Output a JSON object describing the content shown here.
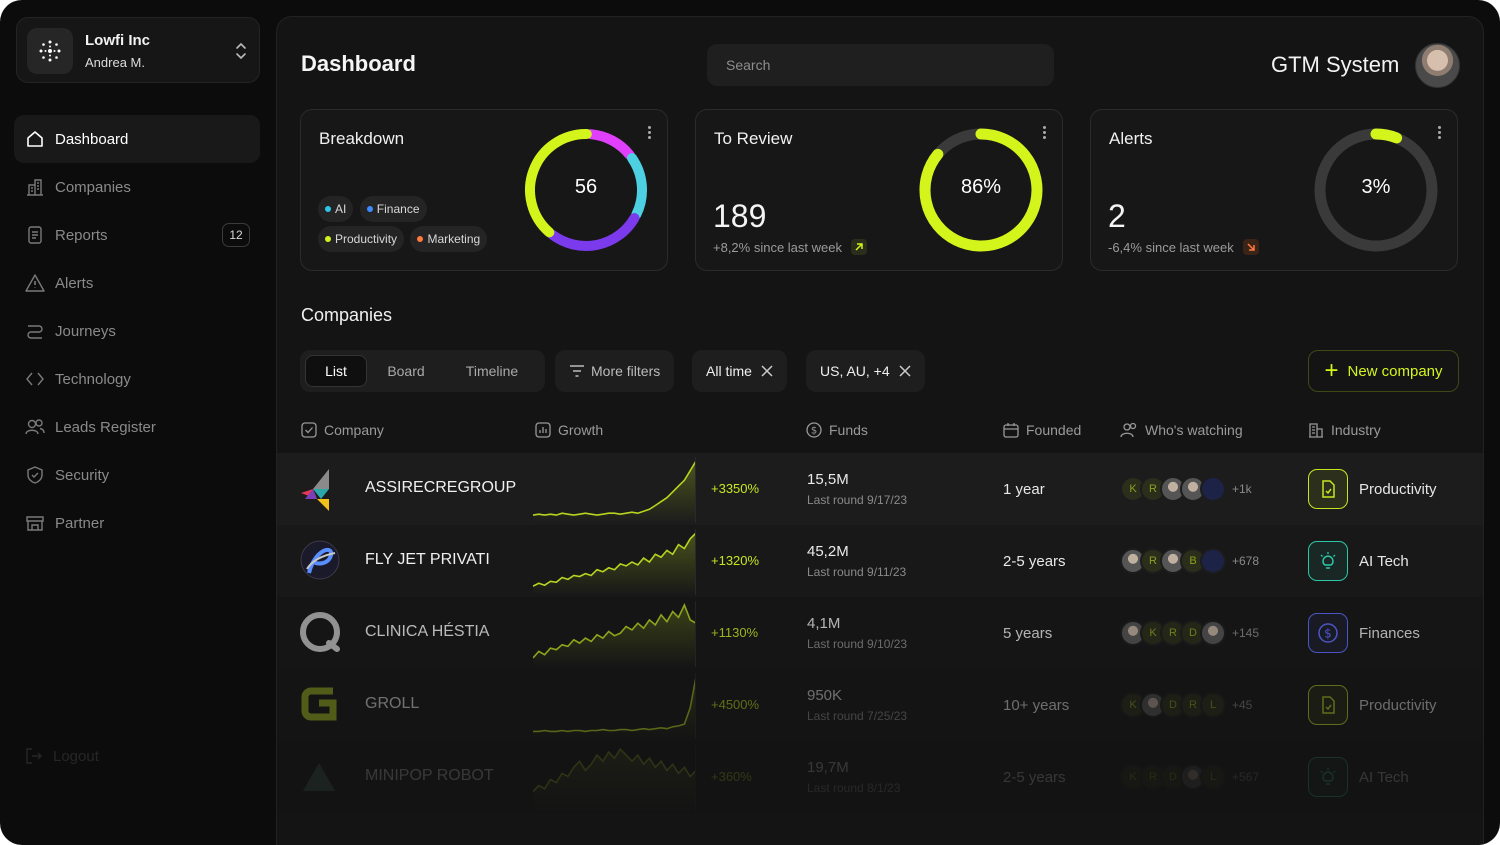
{
  "org": {
    "name": "Lowfi Inc",
    "user": "Andrea M."
  },
  "sidebar": {
    "items": [
      {
        "label": "Dashboard",
        "icon": "home-icon",
        "active": true
      },
      {
        "label": "Companies",
        "icon": "building-icon"
      },
      {
        "label": "Reports",
        "icon": "document-icon",
        "badge": "12"
      },
      {
        "label": "Alerts",
        "icon": "warning-icon"
      },
      {
        "label": "Journeys",
        "icon": "route-icon"
      },
      {
        "label": "Technology",
        "icon": "code-icon"
      },
      {
        "label": "Leads Register",
        "icon": "users-icon"
      },
      {
        "label": "Security",
        "icon": "shield-icon"
      },
      {
        "label": "Partner",
        "icon": "store-icon"
      }
    ],
    "logout": "Logout"
  },
  "header": {
    "title": "Dashboard",
    "search_placeholder": "Search",
    "system_name": "GTM System"
  },
  "cards": {
    "breakdown": {
      "title": "Breakdown",
      "total": "56",
      "tags": [
        {
          "label": "AI",
          "color": "#2ec6e8"
        },
        {
          "label": "Finance",
          "color": "#3d8bff"
        },
        {
          "label": "Productivity",
          "color": "#d4f51c"
        },
        {
          "label": "Marketing",
          "color": "#ff7a3d"
        }
      ],
      "segments": [
        {
          "color": "#e040fb",
          "fraction": 0.14
        },
        {
          "color": "#4dd0e1",
          "fraction": 0.18
        },
        {
          "color": "#7c3aed",
          "fraction": 0.28
        },
        {
          "color": "#d4f51c",
          "fraction": 0.4
        }
      ]
    },
    "review": {
      "title": "To Review",
      "value": "189",
      "delta": "+8,2% since last week",
      "percent_label": "86%",
      "percent": 0.86,
      "color": "#d4f51c"
    },
    "alerts": {
      "title": "Alerts",
      "value": "2",
      "delta": "-6,4% since last week",
      "percent_label": "3%",
      "percent": 0.03,
      "color": "#d4f51c"
    }
  },
  "companies": {
    "title": "Companies",
    "views": [
      "List",
      "Board",
      "Timeline"
    ],
    "more_filters": "More filters",
    "filter_time": "All time",
    "filter_region": "US, AU, +4",
    "new_button": "New company",
    "columns": [
      "Company",
      "Growth",
      "Funds",
      "Founded",
      "Who's watching",
      "Industry"
    ],
    "rows": [
      {
        "name": "ASSIRECREGROUP",
        "growth": "+3350%",
        "funds": "15,5M",
        "round": "Last round 9/17/23",
        "founded": "1 year",
        "watch": [
          "K",
          "R",
          "photo",
          "photo",
          "blue"
        ],
        "watch_more": "+1k",
        "industry": "Productivity",
        "industry_icon": "file-icon",
        "industry_color": "#c8e620",
        "spark": [
          4,
          5,
          4,
          5,
          4,
          6,
          5,
          4,
          5,
          6,
          5,
          4,
          5,
          6,
          6,
          5,
          6,
          7,
          6,
          8,
          10,
          14,
          18,
          22,
          28,
          34,
          40,
          50,
          60
        ]
      },
      {
        "name": "FLY JET PRIVATI",
        "growth": "+1320%",
        "funds": "45,2M",
        "round": "Last round 9/11/23",
        "founded": "2-5 years",
        "watch": [
          "photo",
          "R",
          "photo",
          "B",
          "blue"
        ],
        "watch_more": "+678",
        "industry": "AI Tech",
        "industry_icon": "bulb-icon",
        "industry_color": "#2ec6a8",
        "spark": [
          5,
          8,
          6,
          10,
          9,
          14,
          12,
          16,
          15,
          18,
          16,
          22,
          20,
          24,
          22,
          28,
          26,
          30,
          27,
          34,
          30,
          38,
          35,
          42,
          38,
          48,
          44,
          54,
          60
        ]
      },
      {
        "name": "CLINICA HÉSTIA",
        "growth": "+1130%",
        "funds": "4,1M",
        "round": "Last round 9/10/23",
        "founded": "5 years",
        "watch": [
          "photo",
          "K",
          "R",
          "D",
          "photo"
        ],
        "watch_more": "+145",
        "industry": "Finances",
        "industry_icon": "dollar-icon",
        "industry_color": "#5b6cff",
        "spark": [
          6,
          14,
          10,
          18,
          16,
          22,
          20,
          28,
          24,
          30,
          26,
          34,
          30,
          38,
          33,
          36,
          44,
          40,
          48,
          42,
          52,
          46,
          58,
          50,
          62,
          55,
          70,
          52,
          48
        ]
      },
      {
        "name": "GROLL",
        "growth": "+4500%",
        "funds": "950K",
        "round": "Last round 7/25/23",
        "founded": "10+ years",
        "watch": [
          "K",
          "photo",
          "D",
          "R",
          "L"
        ],
        "watch_more": "+45",
        "industry": "Productivity",
        "industry_icon": "file-icon",
        "industry_color": "#c8e620",
        "spark": [
          4,
          4,
          5,
          4,
          4,
          5,
          4,
          5,
          5,
          4,
          5,
          5,
          6,
          5,
          5,
          6,
          6,
          5,
          6,
          7,
          6,
          7,
          8,
          7,
          9,
          10,
          12,
          30,
          64
        ]
      },
      {
        "name": "MINIPOP ROBOT",
        "growth": "+360%",
        "funds": "19,7M",
        "round": "Last round 8/1/23",
        "founded": "2-5 years",
        "watch": [
          "K",
          "R",
          "D",
          "photo",
          "L"
        ],
        "watch_more": "+567",
        "industry": "AI Tech",
        "industry_icon": "bulb-icon",
        "industry_color": "#2ec6a8",
        "spark": [
          10,
          14,
          12,
          18,
          16,
          22,
          20,
          26,
          30,
          24,
          28,
          34,
          30,
          36,
          32,
          38,
          34,
          30,
          34,
          28,
          32,
          26,
          30,
          24,
          28,
          22,
          26,
          20,
          24
        ]
      }
    ]
  },
  "colors": {
    "accent": "#d4f51c",
    "background": "#0c0c0c",
    "panel": "#141414"
  }
}
